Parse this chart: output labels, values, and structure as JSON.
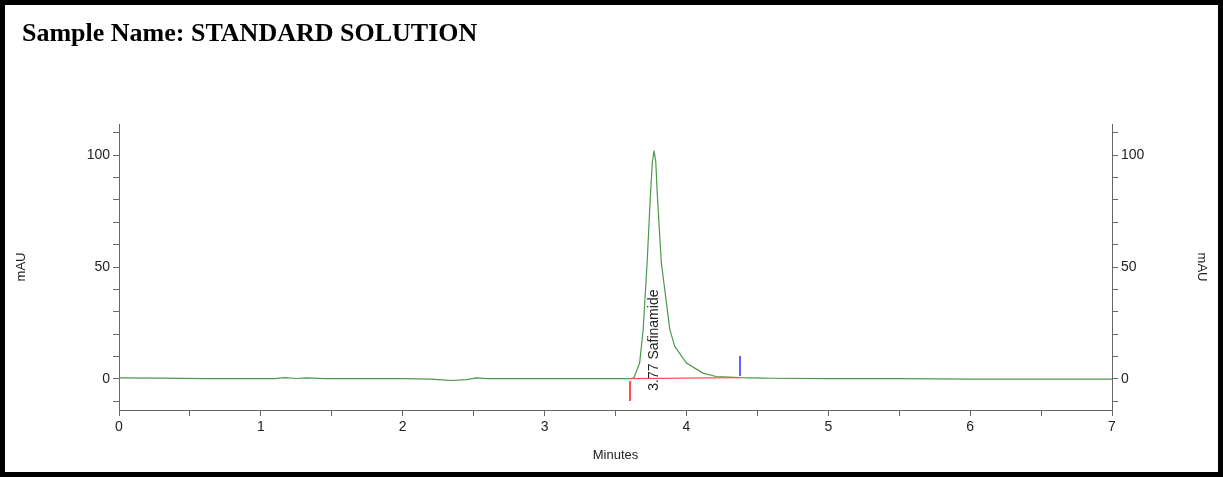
{
  "chart_data": {
    "type": "line",
    "title": "Sample Name: STANDARD SOLUTION",
    "xlabel": "Minutes",
    "ylabel": "mAU",
    "y2label": "mAU",
    "xlim": [
      0,
      7
    ],
    "xticks": [
      0,
      {
        "value": 0.5,
        "label": null
      },
      1,
      {
        "value": 1.5,
        "label": null
      },
      2,
      {
        "value": 2.5,
        "label": null
      },
      3,
      {
        "value": 3.5,
        "label": null
      },
      4,
      {
        "value": 4.5,
        "label": null
      },
      5,
      {
        "value": 5.5,
        "label": null
      },
      6,
      {
        "value": 6.5,
        "label": null
      },
      7
    ],
    "ylim": [
      -14,
      114
    ],
    "yticks": [
      {
        "value": -10,
        "label": null
      },
      0,
      {
        "value": 10,
        "label": null
      },
      {
        "value": 20,
        "label": null
      },
      {
        "value": 30,
        "label": null
      },
      {
        "value": 40,
        "label": null
      },
      50,
      {
        "value": 60,
        "label": null
      },
      {
        "value": 70,
        "label": null
      },
      {
        "value": 80,
        "label": null
      },
      {
        "value": 90,
        "label": null
      },
      100,
      {
        "value": 110,
        "label": null
      }
    ],
    "y2lim": [
      -14,
      114
    ],
    "y2ticks": [
      {
        "value": -10,
        "label": null
      },
      0,
      {
        "value": 10,
        "label": null
      },
      {
        "value": 20,
        "label": null
      },
      {
        "value": 30,
        "label": null
      },
      {
        "value": 40,
        "label": null
      },
      50,
      {
        "value": 60,
        "label": null
      },
      {
        "value": 70,
        "label": null
      },
      {
        "value": 80,
        "label": null
      },
      {
        "value": 90,
        "label": null
      },
      100,
      {
        "value": 110,
        "label": null
      }
    ],
    "grid": false,
    "legend": false,
    "marker": "none",
    "line_style": "solid",
    "series": [
      {
        "color": "#4a9a4a",
        "x": [
          0,
          0.3,
          0.6,
          1.0,
          1.1,
          1.17,
          1.25,
          1.32,
          1.45,
          1.7,
          2.0,
          2.2,
          2.3,
          2.35,
          2.45,
          2.52,
          2.6,
          3.0,
          3.4,
          3.6,
          3.63,
          3.67,
          3.695,
          3.723,
          3.746,
          3.76,
          3.772,
          3.784,
          3.795,
          3.823,
          3.883,
          3.918,
          4.0,
          4.116,
          4.21,
          4.38,
          4.6,
          5.0,
          5.5,
          6.0,
          6.5,
          7.0
        ],
        "values": [
          0.4,
          0.3,
          0,
          0,
          0,
          0.5,
          0.1,
          0.4,
          0,
          0,
          0,
          -0.2,
          -0.6,
          -0.8,
          -0.4,
          0.4,
          0,
          0,
          0,
          0,
          0.4,
          7,
          22,
          52,
          82,
          97,
          102,
          97,
          82,
          52,
          22,
          14.5,
          7,
          2.5,
          1,
          0.5,
          0.2,
          0,
          0,
          -0.2,
          -0.2,
          -0.2
        ]
      },
      {
        "color": "#ff5050",
        "x": [
          3.6,
          4.38
        ],
        "values": [
          0,
          0.5
        ]
      }
    ],
    "annotations": [
      {
        "text": "3.77 Safinamide",
        "x": 3.77,
        "y": 0
      }
    ]
  }
}
